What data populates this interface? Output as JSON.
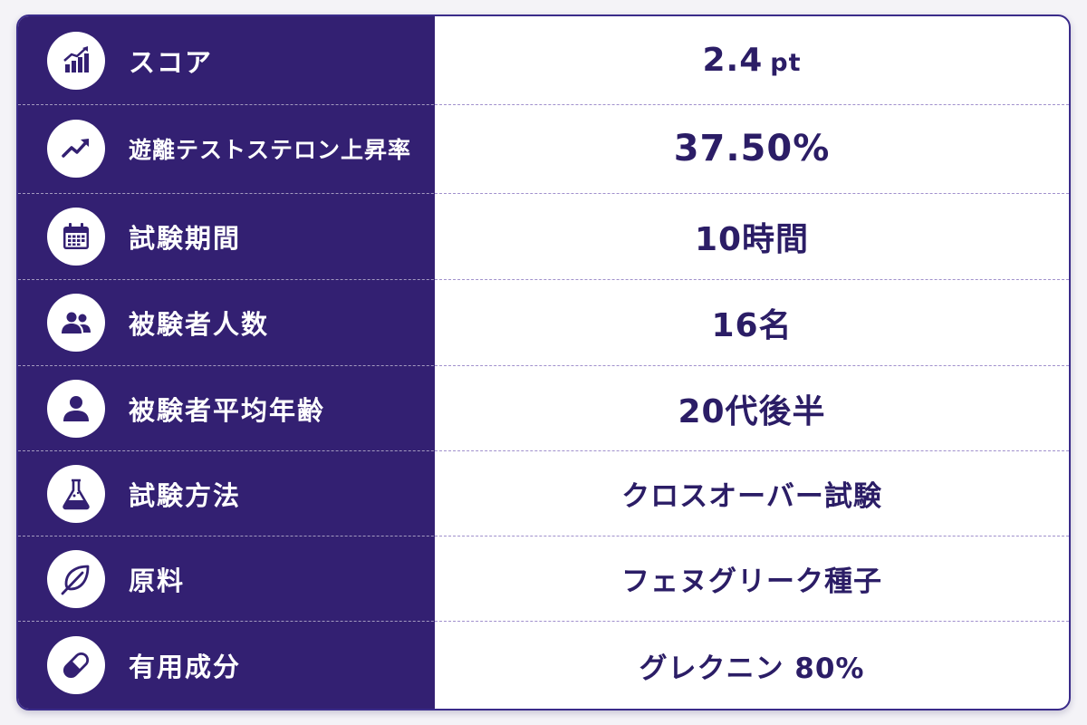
{
  "rows": [
    {
      "label": "スコア",
      "value": "2.4",
      "unit": "pt",
      "icon": "bar-chart-rising-icon"
    },
    {
      "label": "遊離テストステロン上昇率",
      "value": "37.50%",
      "icon": "trend-up-icon"
    },
    {
      "label": "試験期間",
      "value": "10時間",
      "icon": "calendar-icon"
    },
    {
      "label": "被験者人数",
      "value": "16名",
      "icon": "users-group-icon"
    },
    {
      "label": "被験者平均年齢",
      "value": "20代後半",
      "icon": "user-icon"
    },
    {
      "label": "試験方法",
      "value": "クロスオーバー試験",
      "icon": "flask-icon"
    },
    {
      "label": "原料",
      "value": "フェヌグリーク種子",
      "icon": "leaf-icon"
    },
    {
      "label": "有用成分",
      "value": "グレクニン 80%",
      "icon": "capsule-icon"
    }
  ],
  "colors": {
    "panel": "#332072",
    "value_text": "#2b1d66",
    "border": "#3a2b8a"
  }
}
